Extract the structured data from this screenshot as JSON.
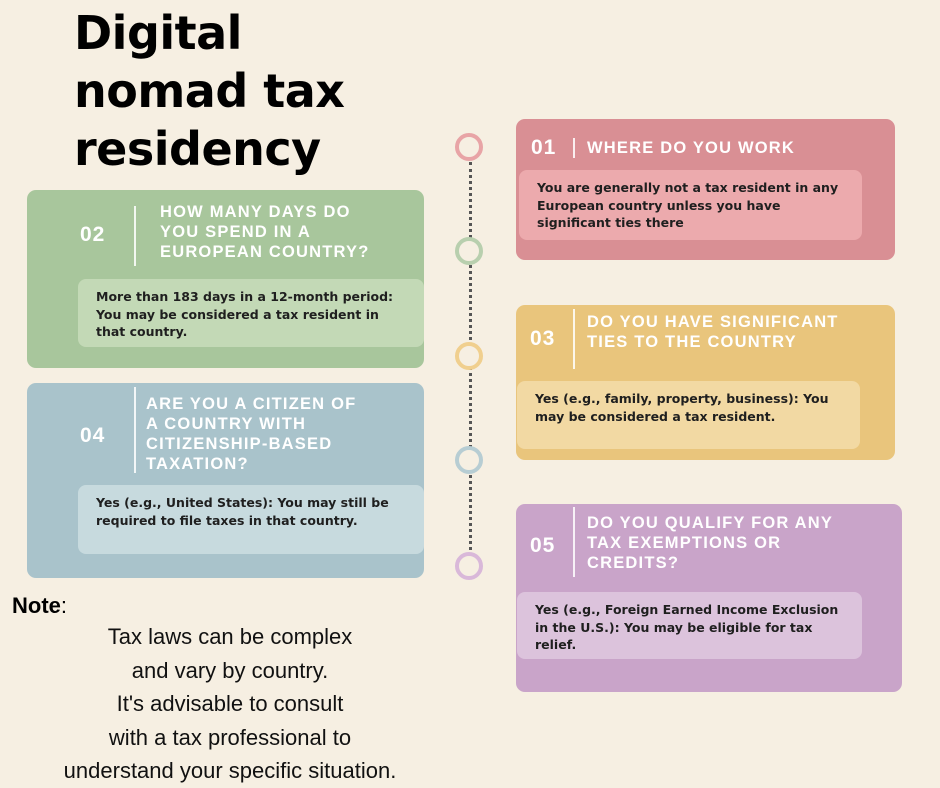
{
  "title": "Digital nomad tax residency",
  "cards": [
    {
      "num": "01",
      "question": "WHERE DO YOU WORK",
      "answer": "You are generally not a tax resident in any European country unless you have significant ties there",
      "color": "#d98f94"
    },
    {
      "num": "02",
      "question": "HOW MANY DAYS DO YOU SPEND IN A EUROPEAN COUNTRY?",
      "answer": "More than 183 days in a 12-month period: You may be considered a tax resident in that country.",
      "color": "#a8c69c"
    },
    {
      "num": "03",
      "question": "DO YOU HAVE SIGNIFICANT TIES TO THE COUNTRY",
      "answer": "Yes (e.g., family, property, business): You may be considered a tax resident.",
      "color": "#e9c57c"
    },
    {
      "num": "04",
      "question": "ARE YOU A CITIZEN OF A COUNTRY WITH CITIZENSHIP-BASED TAXATION?",
      "answer": "Yes (e.g., United States): You may still be required to file taxes in that country.",
      "color": "#a9c3cb"
    },
    {
      "num": "05",
      "question": "DO YOU QUALIFY FOR ANY TAX EXEMPTIONS OR CREDITS?",
      "answer": "Yes (e.g., Foreign Earned Income Exclusion in the U.S.): You may be eligible for tax relief.",
      "color": "#c9a4c9"
    }
  ],
  "timeline_colors": [
    "#e8a4a6",
    "#b8cfae",
    "#f0cf8e",
    "#b7cdd3",
    "#d9b8d9"
  ],
  "note": {
    "label": "Note",
    "colon": ":",
    "lines": [
      "Tax laws can be complex",
      "and vary by country.",
      "It's advisable to consult",
      "with a tax professional to",
      "understand your specific situation."
    ]
  }
}
